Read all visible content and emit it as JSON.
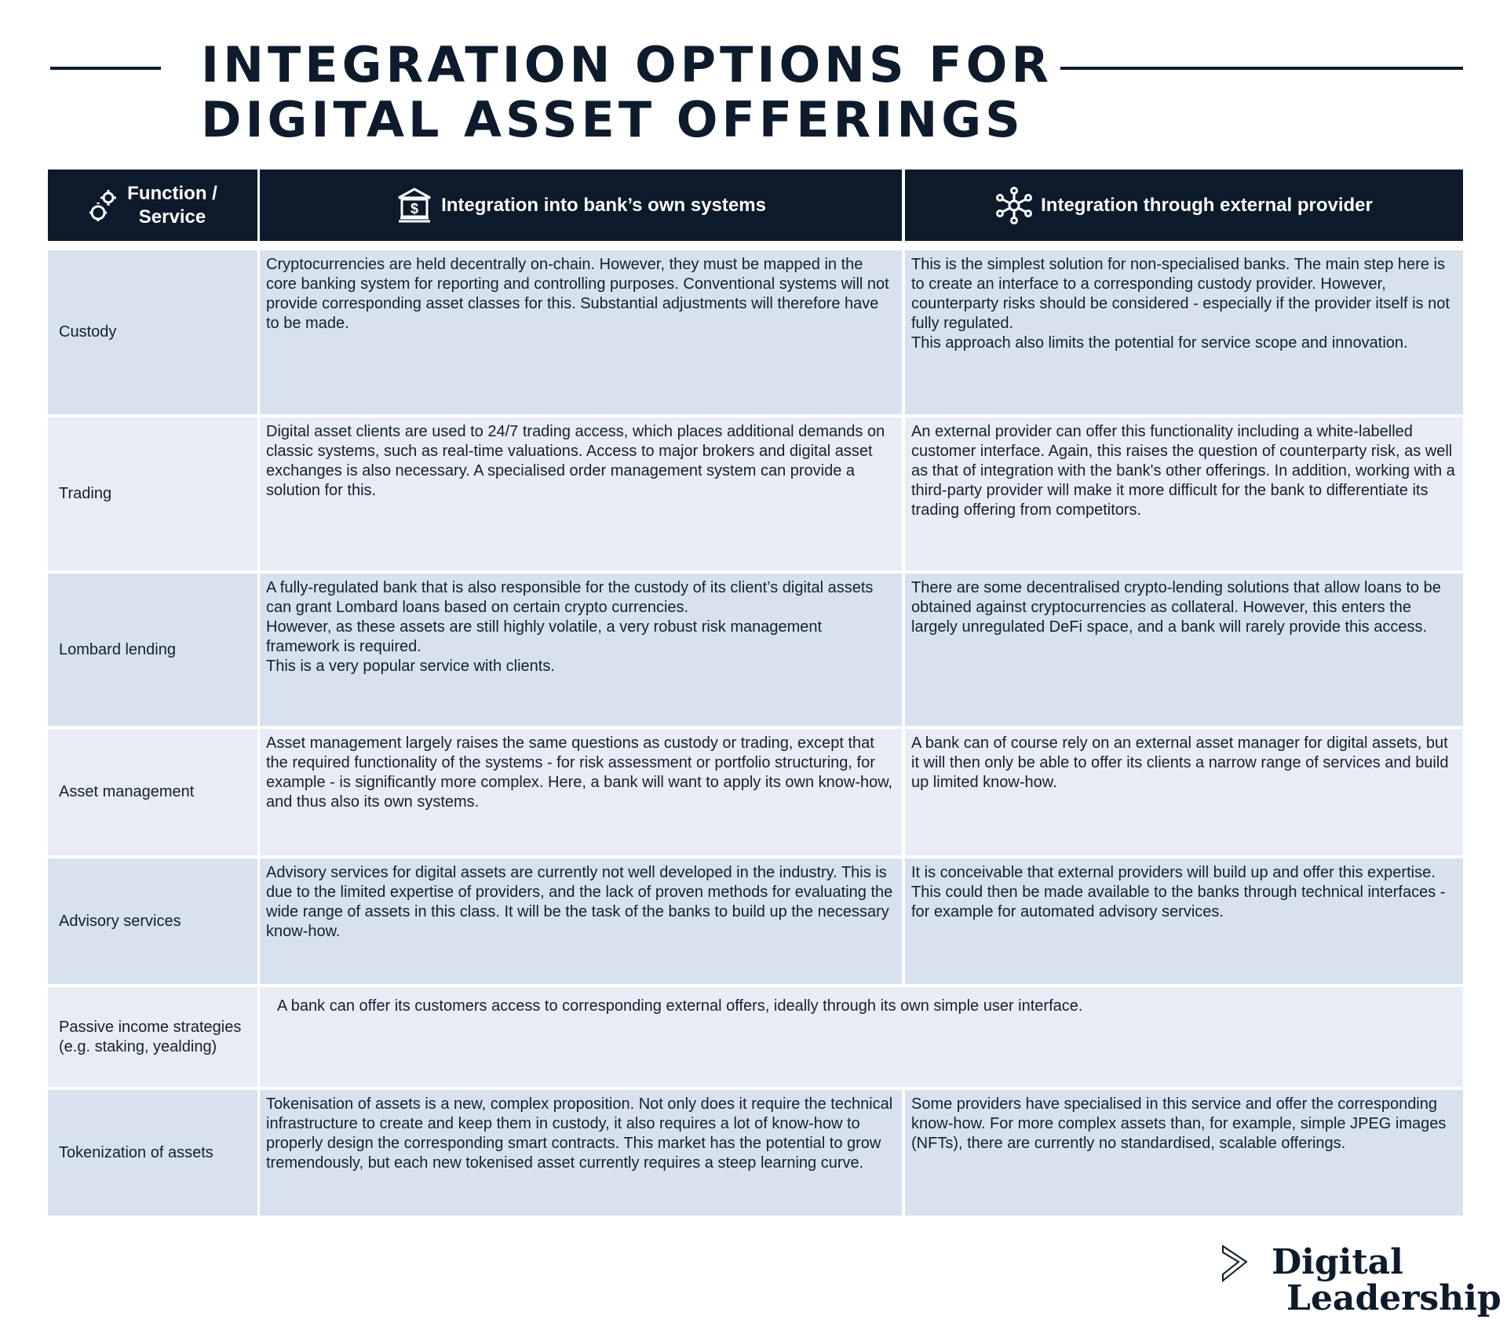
{
  "title": {
    "line1": "INTEGRATION OPTIONS FOR",
    "line2": "DIGITAL ASSET OFFERINGS"
  },
  "columns": {
    "function": {
      "label_line1": "Function /",
      "label_line2": "Service",
      "icon": "gears-icon"
    },
    "own_systems": {
      "label": "Integration into bank’s own systems",
      "icon": "bank-dollar-icon"
    },
    "external": {
      "label": "Integration through external provider",
      "icon": "network-nodes-icon"
    }
  },
  "rows": [
    {
      "function": "Custody",
      "own": "Cryptocurrencies are held decentrally on-chain. However, they must be mapped in the core banking system for reporting and controlling purposes. Conventional systems will not provide corresponding asset classes for this. Substantial adjustments will therefore have to be made.",
      "external": "This is the simplest solution for non-specialised banks. The main step here is to create an interface to a corresponding custody provider. However, counterparty risks should be considered - especially if the provider itself is not fully regulated.\nThis approach also limits the potential for service scope and innovation."
    },
    {
      "function": "Trading",
      "own": "Digital asset clients are used to 24/7 trading access, which places additional demands on classic systems, such as real-time valuations. Access to major brokers and digital asset exchanges is also necessary. A specialised order management system can provide a solution for this.",
      "external": "An external provider can offer this functionality including a white-labelled customer interface. Again, this raises the question of counterparty risk, as well as that of integration with the bank's other offerings. In addition, working with a third-party provider will make it more difficult for the bank to differentiate its trading offering from competitors."
    },
    {
      "function": "Lombard lending",
      "own": "A fully-regulated bank that is also responsible for the custody of its client’s digital assets can grant Lombard loans based on certain crypto currencies.\nHowever, as these assets are still highly volatile, a very robust risk management framework is required.\nThis is a very popular service with clients.",
      "external": "There are some decentralised crypto-lending solutions that allow loans to be obtained against cryptocurrencies as collateral. However, this enters the largely unregulated DeFi space, and a bank will rarely provide this access."
    },
    {
      "function": "Asset management",
      "own": "Asset management largely raises the same questions as custody or trading, except that the required functionality of the systems - for risk assessment or portfolio structuring, for example - is significantly more complex. Here, a bank will want to apply its own know-how, and thus also its own systems.",
      "external": "A bank can of course rely on an external asset manager for digital assets, but it will then only be able to offer its clients a narrow range of services and build up limited know-how."
    },
    {
      "function": "Advisory services",
      "own": "Advisory services for digital assets are currently not well developed in the industry. This is due to the limited expertise of providers, and the lack of proven methods for evaluating the wide range of assets in this class. It will be the task of the banks to build up the necessary know-how.",
      "external": "It is conceivable that external providers will build up and offer this expertise. This could then be made available to the banks through technical interfaces - for example for automated advisory services."
    },
    {
      "function": "Passive income strategies (e.g. staking, yealding)",
      "merged": "A bank can offer its customers access to corresponding external offers, ideally through its own simple user interface."
    },
    {
      "function": "Tokenization of assets",
      "own": "Tokenisation of assets is a new, complex proposition. Not only does it require the technical infrastructure to create and keep them in custody, it also requires a lot of know-how to properly design the corresponding smart contracts. This market has the potential to grow tremendously, but each new tokenised asset currently requires a steep learning curve.",
      "external": "Some providers have specialised in this service and offer the corresponding know-how. For more complex assets than, for example, simple JPEG images (NFTs), there are currently no standardised, scalable offerings."
    }
  ],
  "logo": {
    "line1": "Digital",
    "line2": "Leadership",
    "icon": "chevron-right-icon"
  },
  "colors": {
    "header": "#0c1a2b",
    "row_dark": "#d7e2ee",
    "row_light": "#e8edf5",
    "text": "#14202e"
  }
}
